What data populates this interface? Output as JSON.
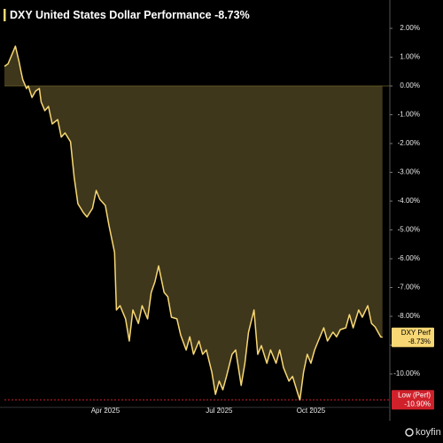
{
  "chart_data": {
    "type": "area",
    "title": "DXY United States Dollar Performance -8.73%",
    "x": [
      0,
      2,
      4,
      6,
      8,
      9,
      10,
      12,
      13,
      15,
      17,
      19,
      20,
      22,
      24,
      26,
      29,
      31,
      33,
      36,
      38,
      40,
      43,
      45,
      48,
      50,
      52,
      55,
      57,
      60,
      61,
      63,
      66,
      68,
      70,
      73,
      75,
      78,
      80,
      82,
      84,
      87,
      89,
      91,
      94,
      96,
      99,
      101,
      103,
      106,
      108,
      110,
      113,
      115,
      117,
      119,
      121,
      124,
      126,
      129,
      131,
      133,
      136,
      138,
      140,
      143,
      145,
      148,
      150,
      152,
      155,
      157,
      160,
      161,
      163,
      165,
      167,
      169,
      171,
      174,
      176,
      179,
      181,
      183,
      186,
      188,
      190,
      193,
      195,
      198,
      200,
      202,
      205,
      206
    ],
    "values": [
      0.68,
      0.77,
      1.08,
      1.38,
      0.83,
      0.52,
      0.22,
      -0.09,
      0,
      -0.4,
      -0.18,
      -0.09,
      -0.55,
      -0.86,
      -0.71,
      -1.32,
      -1.17,
      -1.78,
      -1.63,
      -1.94,
      -3.17,
      -4.09,
      -4.4,
      -4.55,
      -4.25,
      -3.63,
      -3.94,
      -4.15,
      -4.86,
      -5.78,
      -7.78,
      -7.63,
      -8.09,
      -8.86,
      -7.78,
      -8.25,
      -7.63,
      -8.09,
      -7.17,
      -6.8,
      -6.25,
      -7.17,
      -7.32,
      -8.03,
      -8.09,
      -8.65,
      -9.17,
      -8.71,
      -9.32,
      -8.86,
      -9.32,
      -9.17,
      -9.94,
      -10.71,
      -10.25,
      -10.55,
      -10.09,
      -9.32,
      -9.17,
      -10.4,
      -9.63,
      -8.55,
      -7.78,
      -9.32,
      -9.02,
      -9.63,
      -9.17,
      -9.63,
      -9.17,
      -9.78,
      -10.25,
      -10.09,
      -10.71,
      -10.9,
      -9.94,
      -9.32,
      -9.63,
      -9.17,
      -8.86,
      -8.4,
      -8.86,
      -8.55,
      -8.71,
      -8.46,
      -8.4,
      -7.94,
      -8.4,
      -7.78,
      -8.03,
      -7.63,
      -8.25,
      -8.37,
      -8.71,
      -8.73
    ],
    "color": "#f7d774",
    "xlim": [
      0,
      210
    ],
    "xticks": [
      {
        "value": 55,
        "label": "Apr 2025"
      },
      {
        "value": 117,
        "label": "Jul 2025"
      },
      {
        "value": 167,
        "label": "Oct 2025"
      }
    ],
    "ylim": [
      -11.1,
      2.6
    ],
    "yticks": [
      {
        "value": 2,
        "label": "2.00%"
      },
      {
        "value": 1,
        "label": "1.00%"
      },
      {
        "value": 0,
        "label": "0.00%"
      },
      {
        "value": -1,
        "label": "-1.00%"
      },
      {
        "value": -2,
        "label": "-2.00%"
      },
      {
        "value": -3,
        "label": "-3.00%"
      },
      {
        "value": -4,
        "label": "-4.00%"
      },
      {
        "value": -5,
        "label": "-5.00%"
      },
      {
        "value": -6,
        "label": "-6.00%"
      },
      {
        "value": -7,
        "label": "-7.00%"
      },
      {
        "value": -8,
        "label": "-8.00%"
      },
      {
        "value": -9,
        "label": "-9.00%"
      },
      {
        "value": -10,
        "label": "-10.00%"
      }
    ],
    "last": {
      "name": "DXY Perf",
      "value": -8.73,
      "label": "-8.73%"
    },
    "low": {
      "name": "Low (Perf)",
      "value": -10.9,
      "label": "-10.90%"
    },
    "brand": "koyfin"
  }
}
